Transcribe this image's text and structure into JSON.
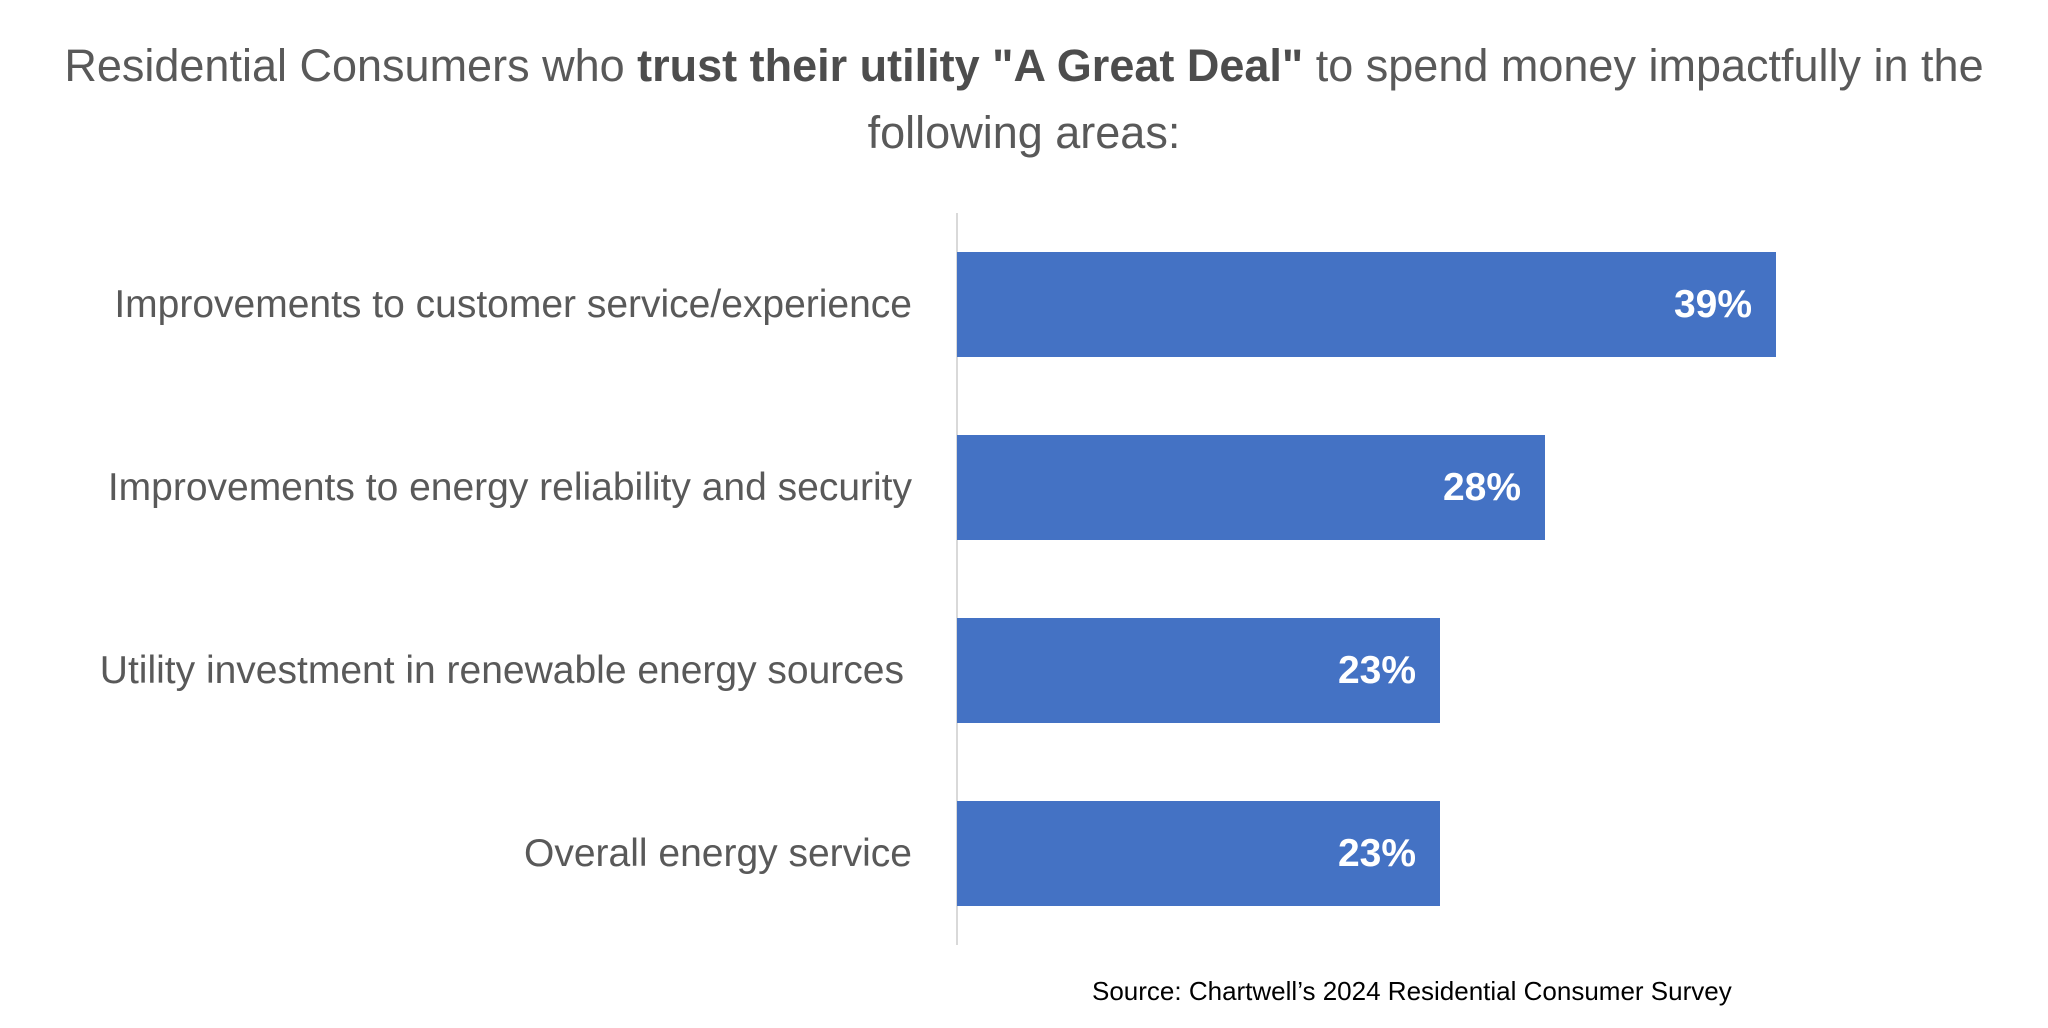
{
  "chart_data": {
    "type": "bar",
    "orientation": "horizontal",
    "title_parts": [
      "Residential Consumers who ",
      "trust their utility \"A Great Deal\"",
      " to spend money impactfully in the following areas:"
    ],
    "categories": [
      "Improvements to customer service/experience",
      "Improvements to energy reliability and security",
      "Utility investment in renewable energy sources",
      "Overall energy service"
    ],
    "values": [
      39,
      28,
      23,
      23
    ],
    "data_labels": [
      "39%",
      "28%",
      "23%",
      "23%"
    ],
    "xlim": [
      0,
      39
    ],
    "grid": false,
    "legend": "none",
    "bar_color": "#4472c4",
    "source": "Source: Chartwell’s 2024 Residential Consumer Survey"
  }
}
